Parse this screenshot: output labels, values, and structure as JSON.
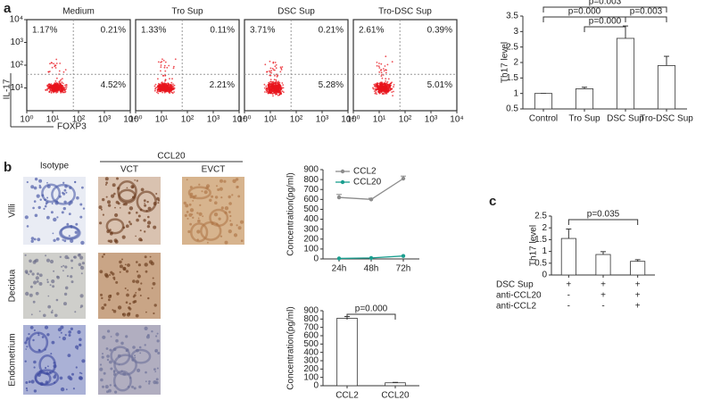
{
  "panel_labels": [
    "a",
    "b",
    "c"
  ],
  "flow_cytometry": {
    "y_label": "IL-17",
    "x_label": "FOXP3",
    "log": true,
    "ticks": [
      {
        "value": 1,
        "label": "10⁰"
      },
      {
        "value": 10,
        "label": "10¹"
      },
      {
        "value": 100,
        "label": "10²"
      },
      {
        "value": 1000,
        "label": "10³"
      },
      {
        "value": 10000,
        "label": "10⁴"
      }
    ],
    "plots": [
      {
        "title": "Medium",
        "upper_left": "1.17%",
        "upper_right": "0.21%",
        "lower_right": "4.52%"
      },
      {
        "title": "Tro Sup",
        "upper_left": "1.33%",
        "upper_right": "0.11%",
        "lower_right": "2.21%"
      },
      {
        "title": "DSC Sup",
        "upper_left": "3.71%",
        "upper_right": "0.21%",
        "lower_right": "5.28%"
      },
      {
        "title": "Tro-DSC Sup",
        "upper_left": "2.61%",
        "upper_right": "0.39%",
        "lower_right": "5.01%"
      }
    ]
  },
  "micrographs": {
    "column_group": "CCL20",
    "columns": [
      "Isotype",
      "VCT",
      "EVCT"
    ],
    "rows": [
      "Villi",
      "Decidua",
      "Endometrium"
    ]
  },
  "chart_data": [
    {
      "type": "bar",
      "y_label": "Th17 level",
      "categories": [
        "Control",
        "Tro Sup",
        "DSC Sup",
        "Tro-DSC Sup"
      ],
      "values": [
        1.0,
        1.15,
        2.78,
        1.9
      ],
      "errors": [
        0,
        0.05,
        0.4,
        0.3
      ],
      "color": "#ffffff",
      "ylim": [
        0.5,
        3.5
      ],
      "yticks": [
        0.5,
        1,
        1.5,
        2,
        2.5,
        3,
        3.5
      ],
      "brackets": [
        {
          "between": [
            "Control",
            "Tro-DSC Sup"
          ],
          "label": "p=0.003"
        },
        {
          "between": [
            "Control",
            "DSC Sup"
          ],
          "label": "p=0.000"
        },
        {
          "between": [
            "Tro Sup",
            "DSC Sup"
          ],
          "label": "p=0.000"
        },
        {
          "between": [
            "DSC Sup",
            "Tro-DSC Sup"
          ],
          "label": "p=0.003"
        }
      ]
    },
    {
      "type": "line",
      "y_label": "Concentration(pg/ml)",
      "categories": [
        "24h",
        "48h",
        "72h"
      ],
      "series": [
        {
          "name": "CCL2",
          "color": "#8c8c8c",
          "values": [
            620,
            600,
            810
          ],
          "errors": [
            30,
            12,
            25
          ]
        },
        {
          "name": "CCL20",
          "color": "#1b9e8f",
          "values": [
            5,
            10,
            30
          ]
        }
      ],
      "ylim": [
        0,
        900
      ],
      "yticks": [
        0,
        100,
        200,
        300,
        400,
        500,
        600,
        700,
        800,
        900
      ]
    },
    {
      "type": "bar",
      "y_label": "Concentration(pg/ml)",
      "categories": [
        "CCL2",
        "CCL20"
      ],
      "values": [
        810,
        35
      ],
      "errors": [
        20,
        5
      ],
      "color": "#ffffff",
      "ylim": [
        0,
        900
      ],
      "yticks": [
        0,
        100,
        200,
        300,
        400,
        500,
        600,
        700,
        800,
        900
      ],
      "brackets": [
        {
          "between": [
            "CCL2",
            "CCL20"
          ],
          "label": "p=0.000"
        }
      ]
    },
    {
      "type": "bar",
      "y_label": "Th17 level",
      "categories": [
        null,
        null,
        null
      ],
      "values": [
        1.55,
        0.87,
        0.58
      ],
      "errors": [
        0.4,
        0.12,
        0.07
      ],
      "color": "#ffffff",
      "ylim": [
        0,
        2.5
      ],
      "yticks": [
        0,
        0.5,
        1,
        1.5,
        2,
        2.5
      ],
      "brackets": [
        {
          "between": [
            0,
            2
          ],
          "label": "p=0.035"
        }
      ],
      "treatment_rows": [
        {
          "label": "DSC Sup",
          "signs": [
            "+",
            "+",
            "+"
          ]
        },
        {
          "label": "anti-CCL20",
          "signs": [
            "-",
            "+",
            "+"
          ]
        },
        {
          "label": "anti-CCL2",
          "signs": [
            "-",
            "-",
            "+"
          ]
        }
      ]
    }
  ]
}
